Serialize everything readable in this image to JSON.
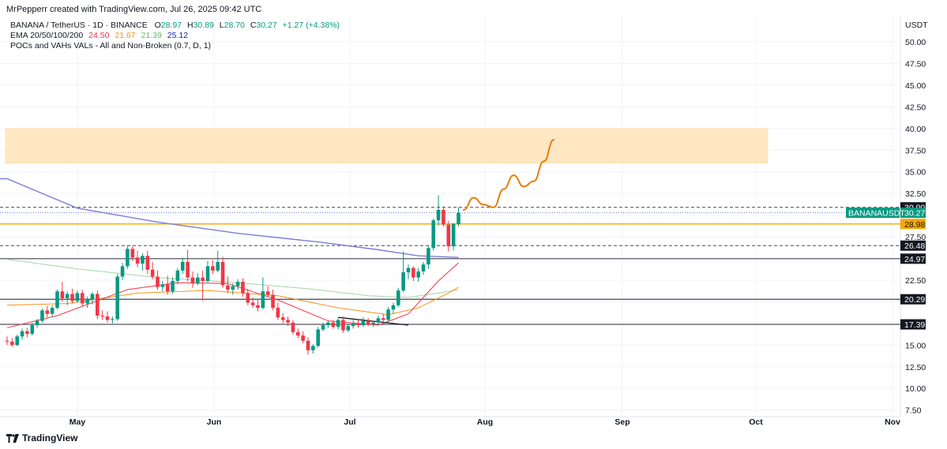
{
  "attribution": "MrPepperr created with TradingView.com, Jul 26, 2025 09:42 UTC",
  "currency": "USDT",
  "legend": {
    "symbol": "BANANA / TetherUS · 1D · BINANCE",
    "o_label": "O",
    "o_value": "28.97",
    "h_label": "H",
    "h_value": "30.89",
    "l_label": "L",
    "l_value": "28.70",
    "c_label": "C",
    "c_value": "30.27",
    "change": "+1.27 (+4.38%)",
    "ema_label": "EMA 20/50/100/200",
    "ema_values": [
      "24.50",
      "21.67",
      "21.39",
      "25.12"
    ],
    "poc_label": "POCs and VAHs VALs - All and Non-Broken (0.7, D, 1)"
  },
  "footer": {
    "brand": "TradingView"
  },
  "colors": {
    "up": "#089981",
    "down": "#f23645",
    "ema20": "#f23645",
    "ema50": "#f7931a",
    "ema100": "#a5d6a7",
    "ema200": "#7e7bd8",
    "zone": "#ffe3b8",
    "projection": "#e67e00",
    "level_orange": "#f7a600"
  },
  "chart_data": {
    "type": "candlestick",
    "y_axis": {
      "range": [
        7.5,
        52.0
      ],
      "ticks": [
        "50.00",
        "47.50",
        "45.00",
        "42.50",
        "40.00",
        "37.50",
        "35.00",
        "32.50",
        "27.50",
        "22.50",
        "15.00",
        "12.50",
        "10.00",
        "7.50"
      ]
    },
    "x_axis": {
      "month_labels": [
        "May",
        "Jun",
        "Jul",
        "Aug",
        "Sep",
        "Oct",
        "Nov"
      ]
    },
    "price_tags": [
      {
        "label": "30.90",
        "value": 30.9,
        "style": "dark"
      },
      {
        "label": "30.27",
        "value": 30.27,
        "style": "green",
        "symbol": "BANANAUSDT"
      },
      {
        "label": "28.98",
        "value": 28.98,
        "style": "orange"
      },
      {
        "label": "26.48",
        "value": 26.48,
        "style": "dark"
      },
      {
        "label": "24.97",
        "value": 24.97,
        "style": "dark"
      },
      {
        "label": "20.29",
        "value": 20.29,
        "style": "dark"
      },
      {
        "label": "17.39",
        "value": 17.39,
        "style": "dark"
      }
    ],
    "supply_zone": {
      "low": 36.0,
      "high": 40.0
    },
    "candles": [
      [
        15.5,
        16.0,
        15.0,
        15.4
      ],
      [
        15.4,
        15.8,
        14.8,
        15.0
      ],
      [
        15.0,
        16.2,
        14.9,
        16.0
      ],
      [
        16.0,
        16.9,
        15.6,
        16.6
      ],
      [
        16.6,
        17.0,
        15.9,
        16.3
      ],
      [
        16.3,
        17.6,
        16.1,
        17.3
      ],
      [
        17.3,
        18.0,
        17.0,
        17.8
      ],
      [
        17.8,
        19.2,
        17.6,
        19.0
      ],
      [
        19.0,
        19.5,
        18.2,
        18.6
      ],
      [
        18.6,
        19.6,
        18.3,
        19.3
      ],
      [
        19.3,
        21.4,
        19.1,
        21.2
      ],
      [
        21.2,
        22.3,
        20.0,
        20.4
      ],
      [
        20.4,
        21.2,
        19.6,
        20.9
      ],
      [
        20.9,
        21.5,
        19.8,
        20.1
      ],
      [
        20.1,
        21.3,
        19.9,
        21.0
      ],
      [
        21.0,
        21.4,
        19.5,
        19.8
      ],
      [
        19.8,
        20.6,
        19.3,
        20.3
      ],
      [
        20.3,
        21.1,
        19.7,
        20.9
      ],
      [
        20.9,
        21.3,
        18.0,
        18.4
      ],
      [
        18.4,
        19.0,
        17.9,
        18.3
      ],
      [
        18.3,
        18.9,
        17.6,
        17.9
      ],
      [
        17.9,
        18.3,
        17.5,
        18.0
      ],
      [
        18.0,
        23.2,
        17.8,
        22.9
      ],
      [
        22.9,
        24.5,
        22.5,
        24.1
      ],
      [
        24.1,
        26.5,
        23.8,
        26.1
      ],
      [
        26.1,
        26.4,
        24.7,
        25.1
      ],
      [
        25.1,
        25.9,
        24.0,
        24.4
      ],
      [
        24.4,
        25.6,
        23.6,
        25.3
      ],
      [
        25.3,
        25.9,
        23.2,
        23.7
      ],
      [
        23.7,
        24.6,
        22.6,
        22.9
      ],
      [
        22.9,
        23.6,
        21.4,
        21.7
      ],
      [
        21.7,
        22.4,
        21.2,
        22.0
      ],
      [
        22.0,
        23.0,
        20.8,
        21.2
      ],
      [
        21.2,
        22.8,
        20.9,
        22.4
      ],
      [
        22.4,
        23.9,
        22.0,
        23.6
      ],
      [
        23.6,
        25.1,
        23.2,
        24.6
      ],
      [
        24.6,
        26.0,
        22.4,
        22.8
      ],
      [
        22.8,
        23.5,
        21.6,
        22.1
      ],
      [
        22.1,
        23.3,
        21.9,
        22.8
      ],
      [
        22.8,
        23.6,
        20.1,
        22.4
      ],
      [
        22.4,
        24.7,
        22.2,
        24.1
      ],
      [
        24.1,
        24.8,
        23.2,
        23.6
      ],
      [
        23.6,
        25.9,
        23.4,
        24.6
      ],
      [
        24.6,
        25.2,
        21.6,
        21.9
      ],
      [
        21.9,
        22.9,
        21.0,
        21.4
      ],
      [
        21.4,
        22.1,
        20.8,
        21.8
      ],
      [
        21.8,
        22.6,
        21.4,
        22.3
      ],
      [
        22.3,
        22.7,
        20.6,
        21.0
      ],
      [
        21.0,
        21.5,
        19.6,
        19.9
      ],
      [
        19.9,
        20.5,
        19.3,
        19.6
      ],
      [
        19.6,
        20.2,
        18.9,
        19.3
      ],
      [
        19.3,
        22.8,
        19.1,
        21.2
      ],
      [
        21.2,
        21.8,
        20.6,
        20.8
      ],
      [
        20.8,
        21.4,
        19.0,
        19.3
      ],
      [
        19.3,
        19.9,
        17.9,
        18.2
      ],
      [
        18.2,
        18.7,
        17.5,
        17.9
      ],
      [
        17.9,
        18.3,
        17.2,
        17.6
      ],
      [
        17.6,
        17.9,
        16.2,
        16.5
      ],
      [
        16.5,
        16.9,
        15.8,
        16.1
      ],
      [
        16.1,
        16.6,
        15.2,
        15.5
      ],
      [
        15.5,
        15.9,
        13.9,
        14.4
      ],
      [
        14.4,
        15.1,
        14.0,
        14.9
      ],
      [
        14.9,
        17.1,
        14.7,
        16.8
      ],
      [
        16.8,
        17.6,
        16.6,
        17.3
      ],
      [
        17.3,
        17.8,
        17.0,
        17.6
      ],
      [
        17.6,
        17.9,
        16.9,
        17.1
      ],
      [
        17.1,
        18.1,
        16.8,
        17.9
      ],
      [
        17.9,
        18.3,
        16.4,
        16.7
      ],
      [
        16.7,
        17.4,
        16.5,
        17.2
      ],
      [
        17.2,
        17.9,
        16.9,
        17.5
      ],
      [
        17.5,
        18.0,
        17.0,
        17.3
      ],
      [
        17.3,
        18.2,
        17.1,
        17.8
      ],
      [
        17.8,
        18.1,
        17.2,
        17.4
      ],
      [
        17.4,
        17.8,
        17.1,
        17.6
      ],
      [
        17.6,
        18.4,
        17.4,
        18.1
      ],
      [
        18.1,
        18.6,
        17.6,
        17.9
      ],
      [
        17.9,
        19.4,
        17.7,
        19.1
      ],
      [
        19.1,
        19.9,
        18.6,
        19.6
      ],
      [
        19.6,
        21.6,
        19.4,
        21.3
      ],
      [
        21.3,
        25.8,
        21.1,
        23.4
      ],
      [
        23.4,
        24.3,
        22.6,
        23.9
      ],
      [
        23.9,
        24.1,
        22.4,
        22.8
      ],
      [
        22.8,
        23.9,
        22.3,
        23.5
      ],
      [
        23.5,
        24.6,
        23.1,
        24.3
      ],
      [
        24.3,
        26.5,
        23.8,
        26.2
      ],
      [
        26.2,
        29.6,
        25.9,
        29.4
      ],
      [
        29.4,
        32.3,
        28.8,
        30.6
      ],
      [
        30.6,
        31.0,
        28.7,
        28.9
      ],
      [
        28.9,
        29.3,
        25.8,
        26.4
      ],
      [
        26.4,
        29.1,
        25.9,
        29.0
      ],
      [
        28.97,
        30.89,
        28.7,
        30.27
      ]
    ],
    "ema20": [
      [
        0,
        17.0
      ],
      [
        10,
        18.4
      ],
      [
        24,
        21.4
      ],
      [
        34,
        22.2
      ],
      [
        44,
        22.1
      ],
      [
        54,
        20.2
      ],
      [
        64,
        17.8
      ],
      [
        74,
        17.3
      ],
      [
        80,
        18.6
      ],
      [
        86,
        22.4
      ],
      [
        90,
        24.5
      ]
    ],
    "ema50": [
      [
        0,
        19.6
      ],
      [
        12,
        19.8
      ],
      [
        26,
        21.0
      ],
      [
        40,
        21.3
      ],
      [
        54,
        20.7
      ],
      [
        66,
        19.3
      ],
      [
        76,
        18.5
      ],
      [
        82,
        19.3
      ],
      [
        88,
        21.0
      ],
      [
        90,
        21.67
      ]
    ],
    "ema100": [
      [
        0,
        24.9
      ],
      [
        14,
        23.8
      ],
      [
        30,
        22.8
      ],
      [
        46,
        22.2
      ],
      [
        60,
        21.5
      ],
      [
        72,
        20.7
      ],
      [
        80,
        20.5
      ],
      [
        86,
        21.0
      ],
      [
        90,
        21.39
      ]
    ],
    "ema200": [
      [
        0,
        34.2
      ],
      [
        14,
        30.8
      ],
      [
        30,
        29.2
      ],
      [
        46,
        27.9
      ],
      [
        62,
        26.9
      ],
      [
        74,
        26.0
      ],
      [
        82,
        25.3
      ],
      [
        90,
        25.12
      ]
    ],
    "trendline": [
      [
        66,
        18.2
      ],
      [
        80,
        17.3
      ]
    ],
    "projection": [
      [
        91,
        30.6
      ],
      [
        93,
        32.0
      ],
      [
        95,
        31.2
      ],
      [
        97,
        30.9
      ],
      [
        99,
        33.0
      ],
      [
        101,
        34.6
      ],
      [
        103,
        33.3
      ],
      [
        105,
        33.9
      ],
      [
        107,
        36.2
      ],
      [
        109,
        38.7
      ]
    ]
  }
}
